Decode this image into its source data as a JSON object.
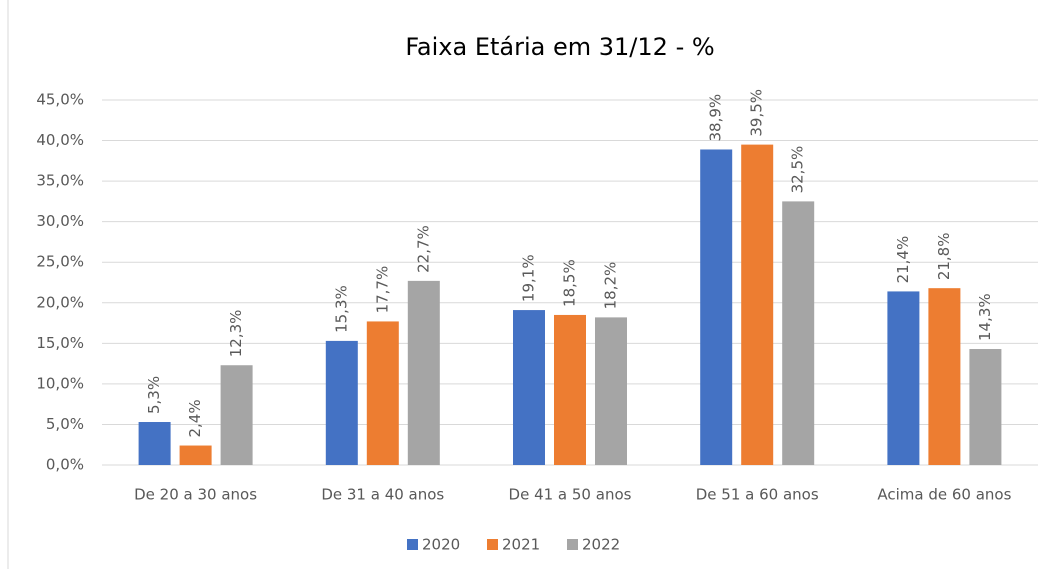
{
  "chart_data": {
    "type": "bar",
    "title": "Faixa Etária em 31/12 - %",
    "categories": [
      "De 20 a 30 anos",
      "De 31 a 40 anos",
      "De 41 a 50 anos",
      "De 51 a 60 anos",
      "Acima de 60 anos"
    ],
    "series": [
      {
        "name": "2020",
        "color": "#4472c4",
        "values": [
          5.3,
          15.3,
          19.1,
          38.9,
          21.4
        ],
        "value_labels": [
          "5,3%",
          "15,3%",
          "19,1%",
          "38,9%",
          "21,4%"
        ]
      },
      {
        "name": "2021",
        "color": "#ed7d31",
        "values": [
          2.4,
          17.7,
          18.5,
          39.5,
          21.8
        ],
        "value_labels": [
          "2,4%",
          "17,7%",
          "18,5%",
          "39,5%",
          "21,8%"
        ]
      },
      {
        "name": "2022",
        "color": "#a5a5a5",
        "values": [
          12.3,
          22.7,
          18.2,
          32.5,
          14.3
        ],
        "value_labels": [
          "12,3%",
          "22,7%",
          "18,2%",
          "32,5%",
          "14,3%"
        ]
      }
    ],
    "ylim": [
      0,
      45
    ],
    "yticks": [
      {
        "value": 0,
        "label": "0,0%"
      },
      {
        "value": 5,
        "label": "5,0%"
      },
      {
        "value": 10,
        "label": "10,0%"
      },
      {
        "value": 15,
        "label": "15,0%"
      },
      {
        "value": 20,
        "label": "20,0%"
      },
      {
        "value": 25,
        "label": "25,0%"
      },
      {
        "value": 30,
        "label": "30,0%"
      },
      {
        "value": 35,
        "label": "35,0%"
      },
      {
        "value": 40,
        "label": "40,0%"
      },
      {
        "value": 45,
        "label": "45,0%"
      }
    ],
    "grid": true,
    "legend": "bottom"
  }
}
